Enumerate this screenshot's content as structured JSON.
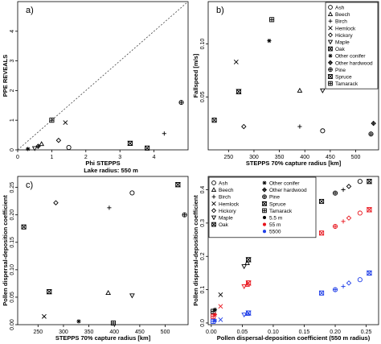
{
  "chart_data": [
    {
      "type": "scatter",
      "panel": "a)",
      "xlabel": "Phi STEPPS",
      "ylabel": "PPE REVEALS",
      "xlim": [
        0,
        5
      ],
      "ylim": [
        0,
        5
      ],
      "xticks": [
        "0",
        "1",
        "2",
        "3",
        "4"
      ],
      "yticks": [
        "0",
        "1",
        "2",
        "3",
        "4"
      ],
      "reference_line": "y = x (dashed)",
      "points": [
        {
          "species": "Ash",
          "x": 1.5,
          "y": 0.08
        },
        {
          "species": "Beech",
          "x": 0.7,
          "y": 0.2
        },
        {
          "species": "Birch",
          "x": 4.3,
          "y": 0.55
        },
        {
          "species": "Hemlock",
          "x": 1.4,
          "y": 0.92
        },
        {
          "species": "Hickory",
          "x": 1.2,
          "y": 0.32
        },
        {
          "species": "Maple",
          "x": 0.5,
          "y": 0.05
        },
        {
          "species": "Oak",
          "x": 3.8,
          "y": 0.06
        },
        {
          "species": "Other conifer",
          "x": 0.3,
          "y": 0.03
        },
        {
          "species": "Other hardwood",
          "x": 0.6,
          "y": 0.12
        },
        {
          "species": "Pine",
          "x": 4.8,
          "y": 1.6
        },
        {
          "species": "Spruce",
          "x": 3.3,
          "y": 0.22
        },
        {
          "species": "Tamarack",
          "x": 1.0,
          "y": 1.0
        }
      ]
    },
    {
      "type": "scatter",
      "panel": "b)",
      "xlabel": "STEPPS 70% capture radius [km]",
      "ylabel": "Fallspeed [m/s]",
      "xlim": [
        210,
        545
      ],
      "ylim": [
        0.0,
        0.14
      ],
      "xticks": [
        "250",
        "300",
        "350",
        "400",
        "450",
        "500"
      ],
      "yticks": [
        "0.05",
        "0.10"
      ],
      "legend": {
        "placement": "top-right",
        "entries": [
          {
            "label": "Ash",
            "symbol": "circle"
          },
          {
            "label": "Beech",
            "symbol": "triangle"
          },
          {
            "label": "Birch",
            "symbol": "plus"
          },
          {
            "label": "Hemlock",
            "symbol": "cross"
          },
          {
            "label": "Hickory",
            "symbol": "diamond"
          },
          {
            "label": "Maple",
            "symbol": "triangle-down"
          },
          {
            "label": "Oak",
            "symbol": "square-cross"
          },
          {
            "label": "Other conifer",
            "symbol": "asterisk"
          },
          {
            "label": "Other hardwood",
            "symbol": "diamond-plus"
          },
          {
            "label": "Pine",
            "symbol": "circle-plus"
          },
          {
            "label": "Spruce",
            "symbol": "hourglass-square"
          },
          {
            "label": "Tamarack",
            "symbol": "square-plus"
          }
        ]
      },
      "points": [
        {
          "species": "Tamarack",
          "x": 335,
          "y": 0.123
        },
        {
          "species": "Other conifer",
          "x": 330,
          "y": 0.103
        },
        {
          "species": "Hemlock",
          "x": 265,
          "y": 0.083
        },
        {
          "species": "Beech",
          "x": 390,
          "y": 0.056
        },
        {
          "species": "Maple",
          "x": 435,
          "y": 0.056
        },
        {
          "species": "Spruce",
          "x": 270,
          "y": 0.055
        },
        {
          "species": "Oak",
          "x": 222,
          "y": 0.028
        },
        {
          "species": "Hickory",
          "x": 280,
          "y": 0.022
        },
        {
          "species": "Birch",
          "x": 390,
          "y": 0.022
        },
        {
          "species": "Ash",
          "x": 435,
          "y": 0.018
        },
        {
          "species": "Other hardwood",
          "x": 535,
          "y": 0.025
        },
        {
          "species": "Pine",
          "x": 530,
          "y": 0.015
        }
      ]
    },
    {
      "type": "scatter",
      "panel": "c)",
      "title": "Lake radius: 550 m",
      "xlabel": "STEPPS 70% capture radius [km]",
      "ylabel": "Pollen dispersal-deposition coefficient",
      "xlim": [
        210,
        545
      ],
      "ylim": [
        0.0,
        0.27
      ],
      "xticks": [
        "250",
        "300",
        "350",
        "400",
        "450",
        "500"
      ],
      "yticks": [
        "0.00",
        "0.05",
        "0.10",
        "0.15",
        "0.20",
        "0.25"
      ],
      "points": [
        {
          "species": "Spruce",
          "x": 525,
          "y": 0.255
        },
        {
          "species": "Ash",
          "x": 435,
          "y": 0.24
        },
        {
          "species": "Hickory",
          "x": 285,
          "y": 0.222
        },
        {
          "species": "Birch",
          "x": 390,
          "y": 0.213
        },
        {
          "species": "Pine",
          "x": 538,
          "y": 0.2
        },
        {
          "species": "Oak",
          "x": 222,
          "y": 0.178
        },
        {
          "species": "Spruce",
          "x": 272,
          "y": 0.06
        },
        {
          "species": "Beech",
          "x": 388,
          "y": 0.058
        },
        {
          "species": "Maple",
          "x": 435,
          "y": 0.053
        },
        {
          "species": "Hemlock",
          "x": 262,
          "y": 0.015
        },
        {
          "species": "Other conifer",
          "x": 330,
          "y": 0.006
        },
        {
          "species": "Tamarack",
          "x": 398,
          "y": 0.003
        }
      ]
    },
    {
      "type": "scatter",
      "panel": "d)",
      "xlabel": "Pollen dispersal-deposition coefficient (550 m radius)",
      "ylabel": "Pollen dispersal-deposition coefficient",
      "xlim": [
        -0.005,
        0.27
      ],
      "ylim": [
        -0.005,
        0.44
      ],
      "xticks": [
        "0.00",
        "0.05",
        "0.10",
        "0.15",
        "0.20",
        "0.25"
      ],
      "yticks": [
        "0.0",
        "0.1",
        "0.2",
        "0.3",
        "0.4"
      ],
      "legend": {
        "placement": "top-left",
        "entries": [
          {
            "label": "Ash",
            "symbol": "circle"
          },
          {
            "label": "Beech",
            "symbol": "triangle"
          },
          {
            "label": "Birch",
            "symbol": "plus"
          },
          {
            "label": "Hemlock",
            "symbol": "cross"
          },
          {
            "label": "Hickory",
            "symbol": "diamond"
          },
          {
            "label": "Maple",
            "symbol": "triangle-down"
          },
          {
            "label": "Oak",
            "symbol": "square-cross"
          },
          {
            "label": "Other conifer",
            "symbol": "asterisk"
          },
          {
            "label": "Other hardwood",
            "symbol": "diamond-plus"
          },
          {
            "label": "Pine",
            "symbol": "circle-plus"
          },
          {
            "label": "Spruce",
            "symbol": "hourglass-square"
          },
          {
            "label": "Tamarack",
            "symbol": "square-plus"
          },
          {
            "label": "5.5 m",
            "symbol": "dot",
            "color": "#000000"
          },
          {
            "label": "55 m",
            "symbol": "dot",
            "color": "#e8141c"
          },
          {
            "label": "5500",
            "symbol": "dot",
            "color": "#1f3ee8"
          }
        ]
      },
      "series": [
        {
          "name": "5.5 m",
          "color": "#000000",
          "points": [
            {
              "species": "Tamarack",
              "x": 0.003,
              "y": 0.035
            },
            {
              "species": "Other conifer",
              "x": 0.006,
              "y": 0.04
            },
            {
              "species": "Hemlock",
              "x": 0.015,
              "y": 0.085
            },
            {
              "species": "Maple",
              "x": 0.053,
              "y": 0.17
            },
            {
              "species": "Beech",
              "x": 0.058,
              "y": 0.18
            },
            {
              "species": "Spruce",
              "x": 0.06,
              "y": 0.19
            },
            {
              "species": "Oak",
              "x": 0.178,
              "y": 0.365
            },
            {
              "species": "Pine",
              "x": 0.2,
              "y": 0.39
            },
            {
              "species": "Birch",
              "x": 0.213,
              "y": 0.4
            },
            {
              "species": "Hickory",
              "x": 0.222,
              "y": 0.41
            },
            {
              "species": "Ash",
              "x": 0.24,
              "y": 0.425
            },
            {
              "species": "Spruce",
              "x": 0.255,
              "y": 0.425
            }
          ]
        },
        {
          "name": "55 m",
          "color": "#e8141c",
          "points": [
            {
              "species": "Tamarack",
              "x": 0.003,
              "y": 0.02
            },
            {
              "species": "Other conifer",
              "x": 0.006,
              "y": 0.025
            },
            {
              "species": "Hemlock",
              "x": 0.015,
              "y": 0.05
            },
            {
              "species": "Maple",
              "x": 0.053,
              "y": 0.11
            },
            {
              "species": "Beech",
              "x": 0.058,
              "y": 0.115
            },
            {
              "species": "Spruce",
              "x": 0.06,
              "y": 0.12
            },
            {
              "species": "Oak",
              "x": 0.178,
              "y": 0.27
            },
            {
              "species": "Pine",
              "x": 0.2,
              "y": 0.29
            },
            {
              "species": "Birch",
              "x": 0.213,
              "y": 0.305
            },
            {
              "species": "Hickory",
              "x": 0.222,
              "y": 0.315
            },
            {
              "species": "Ash",
              "x": 0.24,
              "y": 0.33
            },
            {
              "species": "Spruce",
              "x": 0.255,
              "y": 0.34
            }
          ]
        },
        {
          "name": "5500",
          "color": "#1f3ee8",
          "points": [
            {
              "species": "Tamarack",
              "x": 0.003,
              "y": 0.005
            },
            {
              "species": "Other conifer",
              "x": 0.006,
              "y": 0.007
            },
            {
              "species": "Hemlock",
              "x": 0.015,
              "y": 0.01
            },
            {
              "species": "Maple",
              "x": 0.053,
              "y": 0.025
            },
            {
              "species": "Beech",
              "x": 0.058,
              "y": 0.028
            },
            {
              "species": "Spruce",
              "x": 0.06,
              "y": 0.03
            },
            {
              "species": "Oak",
              "x": 0.178,
              "y": 0.09
            },
            {
              "species": "Pine",
              "x": 0.2,
              "y": 0.1
            },
            {
              "species": "Birch",
              "x": 0.213,
              "y": 0.11
            },
            {
              "species": "Hickory",
              "x": 0.222,
              "y": 0.12
            },
            {
              "species": "Ash",
              "x": 0.24,
              "y": 0.13
            },
            {
              "species": "Spruce",
              "x": 0.255,
              "y": 0.15
            }
          ]
        }
      ]
    }
  ]
}
